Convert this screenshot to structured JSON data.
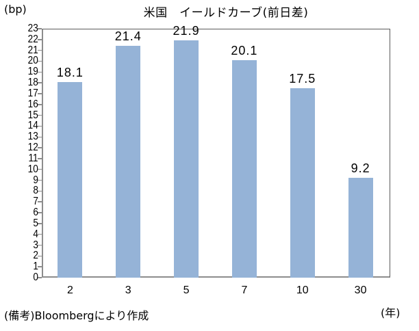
{
  "chart": {
    "title": "米国　イールドカーブ(前日差)",
    "y_unit": "(bp)",
    "x_unit": "(年)",
    "note": "(備考)Bloombergにより作成",
    "bar_color": "#95b3d7"
  },
  "chart_data": {
    "type": "bar",
    "title": "米国　イールドカーブ(前日差)",
    "xlabel": "(年)",
    "ylabel": "(bp)",
    "categories": [
      "2",
      "3",
      "5",
      "7",
      "10",
      "30"
    ],
    "values": [
      18.1,
      21.4,
      21.9,
      20.1,
      17.5,
      9.2
    ],
    "value_labels": [
      "18.1",
      "21.4",
      "21.9",
      "20.1",
      "17.5",
      "9.2"
    ],
    "ylim": [
      0,
      23
    ],
    "yticks": [
      "0",
      "1",
      "2",
      "3",
      "4",
      "5",
      "6",
      "7",
      "8",
      "9",
      "10",
      "11",
      "12",
      "13",
      "14",
      "15",
      "16",
      "17",
      "18",
      "19",
      "20",
      "21",
      "22",
      "23"
    ],
    "grid": false,
    "legend": null,
    "source": "(備考)Bloombergにより作成"
  }
}
